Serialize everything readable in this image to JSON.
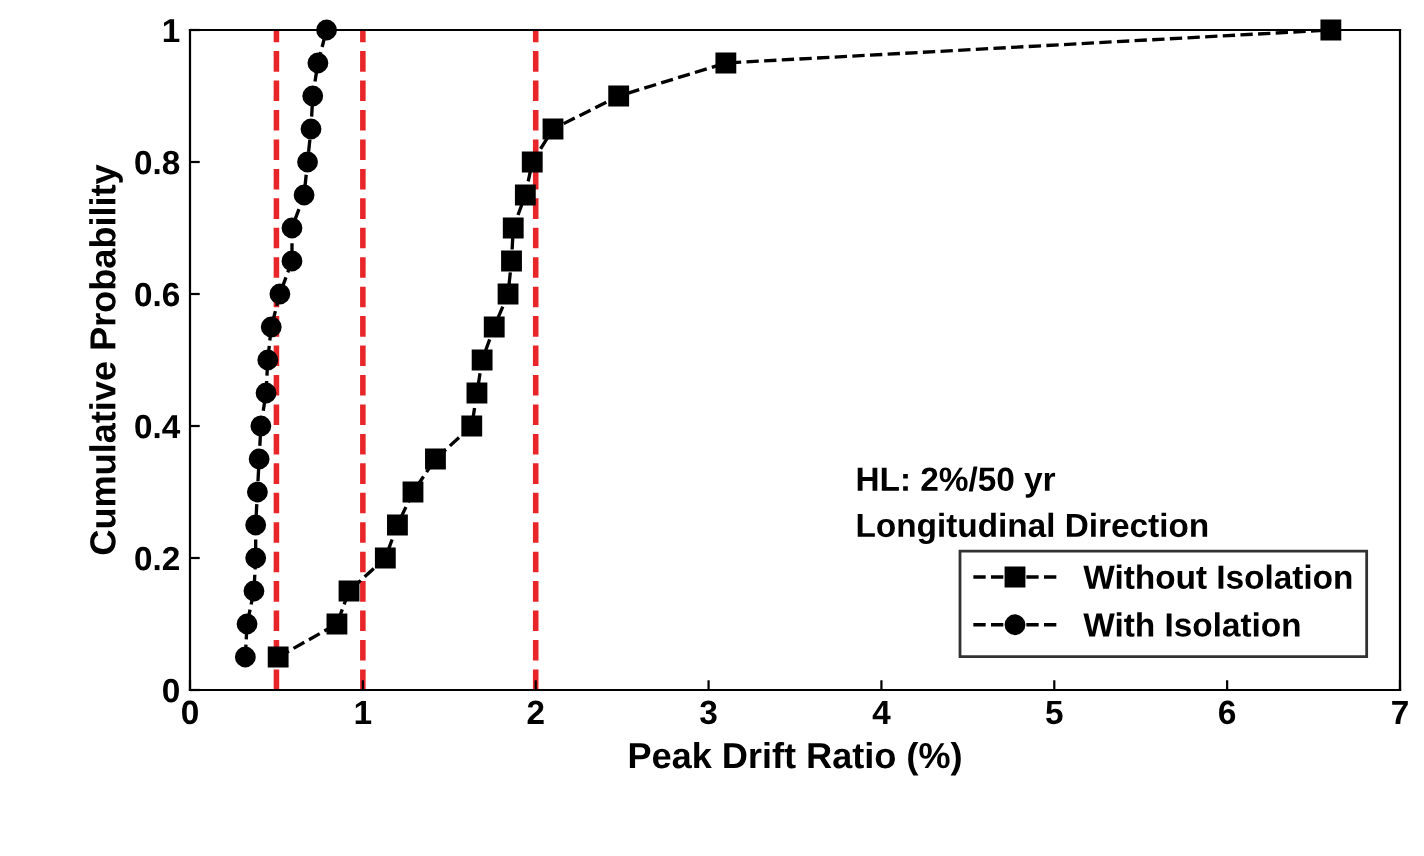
{
  "chart_data": {
    "type": "line",
    "xlabel": "Peak Drift Ratio (%)",
    "ylabel": "Cumulative Probability",
    "xlim": [
      0,
      7
    ],
    "xticks": [
      0,
      1,
      2,
      3,
      4,
      5,
      6,
      7
    ],
    "ylim": [
      0,
      1
    ],
    "yticks": [
      0,
      0.2,
      0.4,
      0.6,
      0.8,
      1
    ],
    "grid": false,
    "legend": "bottom right",
    "line_style": "dashed",
    "annotations": [
      "HL: 2%/50 yr",
      "Longitudinal Direction"
    ],
    "ref_lines": [
      {
        "axis": "x",
        "value": 0.5,
        "color": "#e8262a",
        "line_style": "dashed"
      },
      {
        "axis": "x",
        "value": 1,
        "color": "#e8262a",
        "line_style": "dashed"
      },
      {
        "axis": "x",
        "value": 2,
        "color": "#e8262a",
        "line_style": "dashed"
      }
    ],
    "series": [
      {
        "name": "Without Isolation",
        "color": "#000000",
        "marker": "square",
        "x": [
          0.51,
          0.85,
          0.92,
          1.13,
          1.2,
          1.29,
          1.42,
          1.63,
          1.66,
          1.69,
          1.76,
          1.84,
          1.86,
          1.87,
          1.94,
          1.98,
          2.1,
          2.48,
          3.1,
          6.6
        ],
        "values": [
          0.05,
          0.1,
          0.15,
          0.2,
          0.25,
          0.3,
          0.35,
          0.4,
          0.45,
          0.5,
          0.55,
          0.6,
          0.65,
          0.7,
          0.75,
          0.8,
          0.85,
          0.9,
          0.95,
          1
        ]
      },
      {
        "name": "With Isolation",
        "color": "#000000",
        "marker": "circle",
        "x": [
          0.32,
          0.33,
          0.37,
          0.38,
          0.38,
          0.39,
          0.4,
          0.41,
          0.44,
          0.45,
          0.47,
          0.52,
          0.59,
          0.59,
          0.66,
          0.68,
          0.7,
          0.71,
          0.74,
          0.79
        ],
        "values": [
          0.05,
          0.1,
          0.15,
          0.2,
          0.25,
          0.3,
          0.35,
          0.4,
          0.45,
          0.5,
          0.55,
          0.6,
          0.65,
          0.7,
          0.75,
          0.8,
          0.85,
          0.9,
          0.95,
          1
        ]
      }
    ]
  }
}
